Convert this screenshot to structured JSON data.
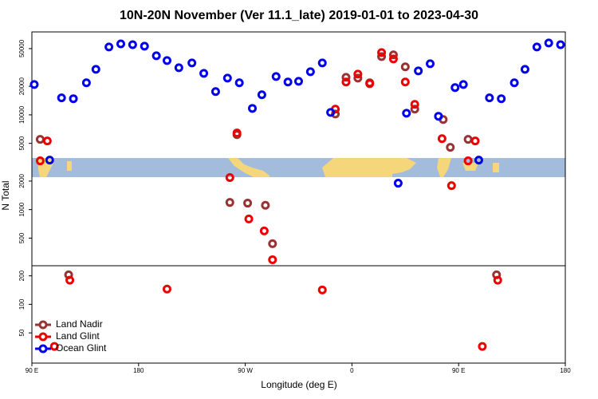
{
  "chart_data": {
    "type": "scatter",
    "title": "10N-20N November (Ver 11.1_late)   2019-01-01 to 2023-04-30",
    "x_label": "Longitude (deg E)",
    "y_label": "N Total",
    "xlim": [
      -270,
      180
    ],
    "xticks": [
      {
        "value": -270,
        "label": "90 E"
      },
      {
        "value": -180,
        "label": "180"
      },
      {
        "value": -90,
        "label": "90 W"
      },
      0,
      {
        "value": 90,
        "label": "90 E"
      },
      180
    ],
    "ylim": [
      24,
      75000
    ],
    "yticks": [
      50,
      100,
      200,
      500,
      1000,
      2000,
      5000,
      10000,
      20000,
      50000
    ],
    "y_log": true,
    "legend": "bottom-left",
    "series": [
      {
        "name": "Land Nadir",
        "color": "#993333",
        "x": [
          -263,
          -239,
          -103,
          -97,
          -88,
          -73,
          -67,
          -14,
          -5,
          5,
          15,
          25,
          35,
          45,
          53,
          77,
          83,
          98,
          122
        ],
        "values": [
          5510,
          205,
          1190,
          6180,
          1170,
          1110,
          437,
          10200,
          24900,
          24400,
          21800,
          41200,
          42900,
          32100,
          11500,
          8930,
          4540,
          5510,
          205
        ]
      },
      {
        "name": "Land Glint",
        "color": "#ee0000",
        "x": [
          -263,
          -257,
          -238,
          -251,
          -156,
          -103,
          -97,
          -87,
          -74,
          -67,
          -25,
          -14,
          -5,
          5,
          15,
          25,
          35,
          45,
          53,
          76,
          84,
          98,
          104,
          110,
          123
        ],
        "values": [
          3270,
          5300,
          180,
          36,
          145,
          2180,
          6430,
          796,
          596,
          296,
          142,
          11500,
          22200,
          26900,
          21300,
          45400,
          38900,
          22200,
          12900,
          5610,
          1790,
          3270,
          5300,
          36,
          180
        ]
      },
      {
        "name": "Ocean Glint",
        "color": "#0000ee",
        "x": [
          -268,
          -255,
          -245,
          -235,
          -224,
          -216,
          -205,
          -195,
          -185,
          -175,
          -165,
          -156,
          -146,
          -135,
          -125,
          -115,
          -105,
          -95,
          -84,
          -76,
          -64,
          -54,
          -45,
          -35,
          -25,
          -18,
          39,
          46,
          56,
          66,
          73,
          87,
          94,
          107,
          116,
          126,
          137,
          146,
          156,
          166,
          176
        ],
        "values": [
          20900,
          3330,
          15100,
          14800,
          21800,
          30200,
          52000,
          56100,
          55000,
          53000,
          42000,
          37400,
          31400,
          35300,
          27400,
          17600,
          24400,
          21800,
          11700,
          16300,
          25400,
          22200,
          22600,
          28500,
          35300,
          10600,
          1900,
          10400,
          29100,
          34600,
          9660,
          19400,
          20900,
          3330,
          15100,
          14800,
          21800,
          30200,
          52000,
          57300,
          55000
        ]
      }
    ]
  }
}
